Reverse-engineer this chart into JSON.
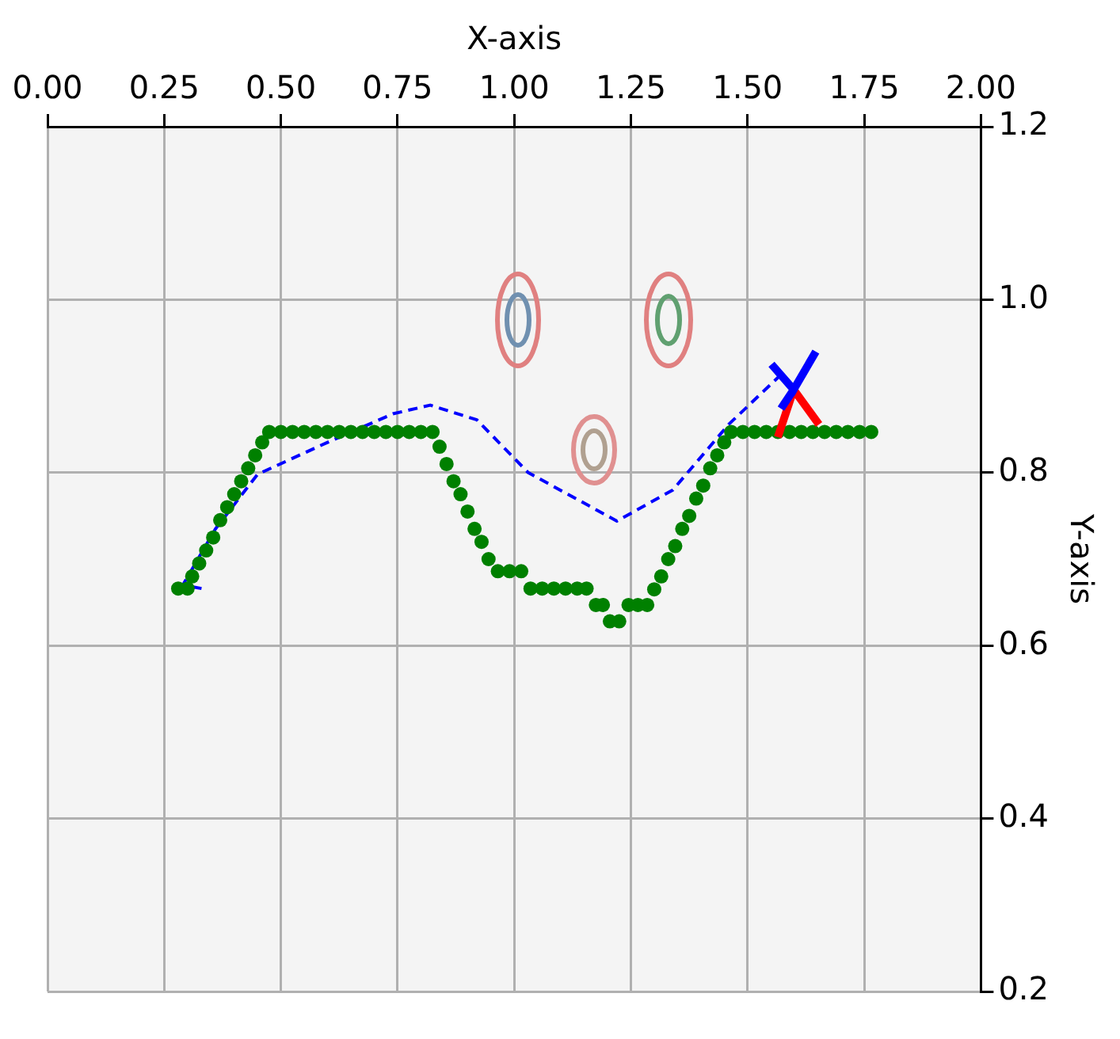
{
  "chart_data": {
    "type": "scatter",
    "xlabel": "X-axis",
    "ylabel": "Y-axis",
    "xlim": [
      0,
      2
    ],
    "ylim": [
      0.2,
      1.2
    ],
    "xticks": [
      {
        "value": 0,
        "label": "0.00"
      },
      {
        "value": 0.25,
        "label": "0.25"
      },
      {
        "value": 0.5,
        "label": "0.50"
      },
      {
        "value": 0.75,
        "label": "0.75"
      },
      {
        "value": 1,
        "label": "1.00"
      },
      {
        "value": 1.25,
        "label": "1.25"
      },
      {
        "value": 1.5,
        "label": "1.50"
      },
      {
        "value": 1.75,
        "label": "1.75"
      },
      {
        "value": 2,
        "label": "2.00"
      }
    ],
    "yticks": [
      0.2,
      0.4,
      0.6,
      0.8,
      {
        "value": 1,
        "label": "1.0"
      },
      1.2
    ],
    "grid": true,
    "legend": false,
    "series": [
      {
        "color": "#008000",
        "marker": "circle",
        "x": [
          0.28,
          0.3,
          0.31,
          0.325,
          0.34,
          0.355,
          0.37,
          0.385,
          0.4,
          0.415,
          0.43,
          0.445,
          0.46,
          0.475,
          0.5,
          0.525,
          0.55,
          0.575,
          0.6,
          0.625,
          0.65,
          0.675,
          0.7,
          0.725,
          0.75,
          0.775,
          0.8,
          0.825,
          0.84,
          0.855,
          0.87,
          0.885,
          0.9,
          0.915,
          0.93,
          0.945,
          0.965,
          0.99,
          1.015,
          1.035,
          1.06,
          1.085,
          1.11,
          1.135,
          1.155,
          1.175,
          1.19,
          1.205,
          1.225,
          1.245,
          1.265,
          1.285,
          1.3,
          1.315,
          1.33,
          1.345,
          1.36,
          1.375,
          1.39,
          1.405,
          1.42,
          1.435,
          1.45,
          1.465,
          1.49,
          1.515,
          1.54,
          1.565,
          1.59,
          1.615,
          1.64,
          1.665,
          1.69,
          1.715,
          1.74,
          1.765
        ],
        "values": [
          0.666,
          0.666,
          0.68,
          0.695,
          0.71,
          0.725,
          0.745,
          0.76,
          0.775,
          0.79,
          0.805,
          0.82,
          0.835,
          0.847,
          0.847,
          0.847,
          0.847,
          0.847,
          0.847,
          0.847,
          0.847,
          0.847,
          0.847,
          0.847,
          0.847,
          0.847,
          0.847,
          0.847,
          0.83,
          0.81,
          0.79,
          0.775,
          0.755,
          0.735,
          0.72,
          0.7,
          0.686,
          0.686,
          0.686,
          0.666,
          0.666,
          0.666,
          0.666,
          0.666,
          0.666,
          0.647,
          0.647,
          0.628,
          0.628,
          0.647,
          0.647,
          0.647,
          0.665,
          0.68,
          0.7,
          0.715,
          0.735,
          0.75,
          0.77,
          0.785,
          0.805,
          0.82,
          0.835,
          0.847,
          0.847,
          0.847,
          0.847,
          0.847,
          0.847,
          0.847,
          0.847,
          0.847,
          0.847,
          0.847,
          0.847,
          0.847
        ]
      },
      {
        "type": "line",
        "color": "#0000ff",
        "line_style": "dashed",
        "marker": "none",
        "x": [
          0.33,
          0.29,
          0.36,
          0.45,
          0.6,
          0.74,
          0.82,
          0.92,
          1.03,
          1.22,
          1.34,
          1.46,
          1.575
        ],
        "values": [
          0.666,
          0.67,
          0.735,
          0.798,
          0.835,
          0.868,
          0.878,
          0.861,
          0.8,
          0.744,
          0.78,
          0.856,
          0.915
        ]
      }
    ]
  }
}
